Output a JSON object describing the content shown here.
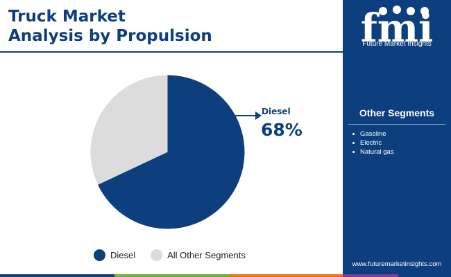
{
  "title": {
    "line1": "Truck Market",
    "line2": "Analysis by Propulsion"
  },
  "chart_data": {
    "type": "pie",
    "categories": [
      "Diesel",
      "All Other Segments"
    ],
    "values": [
      68,
      32
    ],
    "colors": [
      "#0d3f7f",
      "#dcdcdc"
    ],
    "title": "",
    "legend_position": "bottom",
    "callout": {
      "label": "Diesel",
      "value": "68%"
    }
  },
  "legend": [
    {
      "label": "Diesel",
      "color": "#0d3f7f"
    },
    {
      "label": "All Other Segments",
      "color": "#dcdcdc"
    }
  ],
  "sidebar": {
    "brand": "Future Market Insights",
    "logo_text": "fmi",
    "other_segments_title": "Other Segments",
    "other_segments": [
      "Gasoline",
      "Electric",
      "Natural gas"
    ],
    "url": "www.futuremarketinsights.com"
  },
  "colors": {
    "brand_navy": "#0d3f7f",
    "other_grey": "#dcdcdc",
    "bottom_bar": [
      "#0d3f7f",
      "#6cb33f",
      "#e8761c",
      "#7b3f98",
      "#0d3f7f"
    ]
  }
}
